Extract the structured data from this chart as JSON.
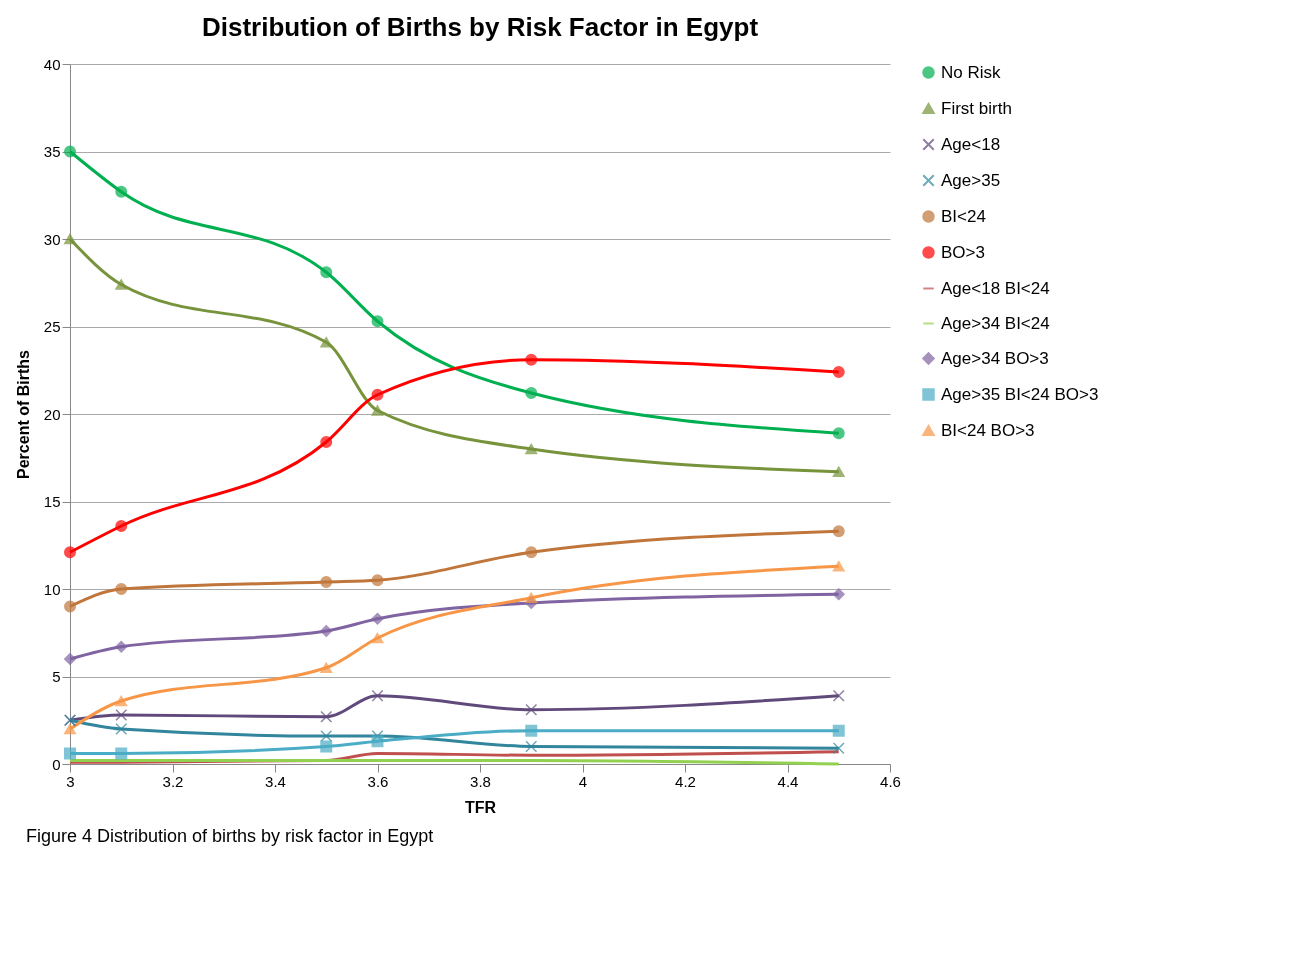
{
  "chart_data": {
    "type": "line",
    "title": "Distribution of Births by Risk Factor in Egypt",
    "xlabel": "TFR",
    "ylabel": "Percent of Births",
    "x": [
      3,
      3.1,
      3.5,
      3.6,
      3.9,
      4.5
    ],
    "xlim": [
      3,
      4.6
    ],
    "xticks": [
      3,
      3.2,
      3.4,
      3.6,
      3.8,
      4,
      4.2,
      4.4,
      4.6
    ],
    "ylim": [
      0,
      40
    ],
    "yticks": [
      0,
      5,
      10,
      15,
      20,
      25,
      30,
      35,
      40
    ],
    "grid": "y",
    "legend": "right",
    "annotations": [
      "Figure 4 Distribution of births by risk factor in Egypt"
    ],
    "series": [
      {
        "name": "No Risk",
        "color": "#00b050",
        "marker": "circle",
        "values": [
          35,
          32.7,
          28.1,
          25.3,
          21.2,
          18.9
        ]
      },
      {
        "name": "First birth",
        "color": "#77933c",
        "marker": "triangle",
        "values": [
          30,
          27.4,
          24.1,
          20.2,
          18,
          16.7
        ]
      },
      {
        "name": "Age<18",
        "color": "#604a7b",
        "marker": "cross",
        "values": [
          2.5,
          2.8,
          2.7,
          3.9,
          3.1,
          3.9
        ]
      },
      {
        "name": "Age>35",
        "color": "#31859c",
        "marker": "cross",
        "values": [
          2.5,
          2,
          1.6,
          1.6,
          1,
          0.9
        ]
      },
      {
        "name": "BI<24",
        "color": "#c0763a",
        "marker": "circle",
        "values": [
          9,
          10,
          10.4,
          10.5,
          12.1,
          13.3
        ]
      },
      {
        "name": "BO>3",
        "color": "#ff0000",
        "marker": "circle",
        "values": [
          12.1,
          13.6,
          18.4,
          21.1,
          23.1,
          22.4
        ]
      },
      {
        "name": "Age<18 BI<24",
        "color": "#c0504d",
        "marker": "none",
        "values": [
          0.1,
          0.1,
          0.2,
          0.6,
          0.5,
          0.7
        ]
      },
      {
        "name": "Age>34 BI<24",
        "color": "#92d050",
        "marker": "none",
        "values": [
          0.2,
          0.2,
          0.2,
          0.2,
          0.2,
          0
        ]
      },
      {
        "name": "Age>34 BO>3",
        "color": "#8064a2",
        "marker": "diamond",
        "values": [
          6,
          6.7,
          7.6,
          8.3,
          9.2,
          9.7
        ]
      },
      {
        "name": "Age>35 BI<24 BO>3",
        "color": "#4bacc6",
        "marker": "square",
        "values": [
          0.6,
          0.6,
          1,
          1.3,
          1.9,
          1.9
        ]
      },
      {
        "name": "BI<24 BO>3",
        "color": "#f79646",
        "marker": "triangle",
        "values": [
          2,
          3.6,
          5.5,
          7.2,
          9.5,
          11.3
        ]
      }
    ]
  }
}
